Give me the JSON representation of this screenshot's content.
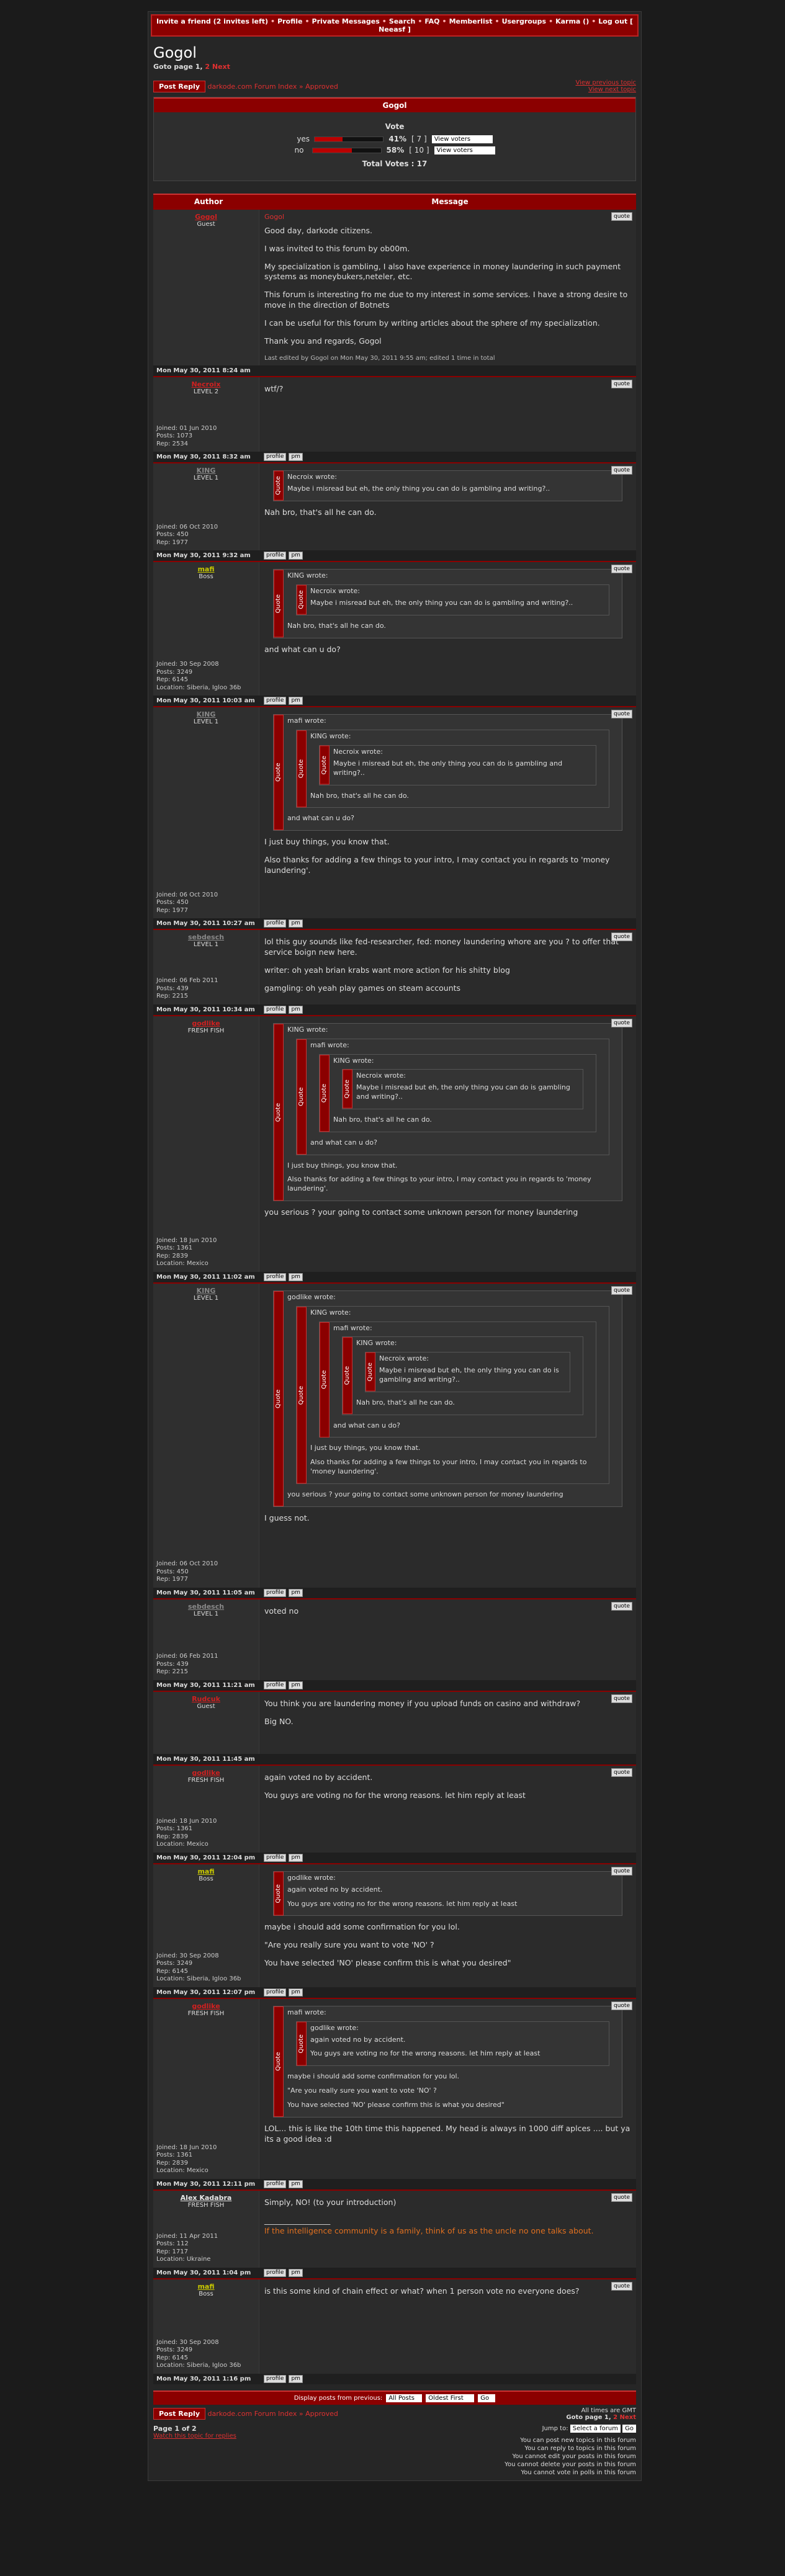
{
  "nav": {
    "separator": "•",
    "items": [
      "Invite a friend (2 invites left)",
      "Profile",
      "Private Messages",
      "Search",
      "FAQ",
      "Memberlist",
      "Usergroups",
      "Karma ()",
      "Log out [ Neeasf ]"
    ]
  },
  "header": {
    "title": "Gogol",
    "goto": "Goto page 1,",
    "goto_page": "2",
    "goto_next": "Next"
  },
  "breadcrumb": {
    "button": "Post Reply",
    "index": "darkode.com Forum Index",
    "sep": "»",
    "forum": "Approved",
    "prev": "View previous topic",
    "next": "View next topic"
  },
  "poll": {
    "topic": "Gogol",
    "question": "Vote",
    "view": "View voters",
    "total": "Total Votes : 17",
    "options": [
      {
        "label": "yes",
        "percent": 41,
        "percent_label": "41%",
        "votes": 7,
        "votes_label": "[ 7 ]"
      },
      {
        "label": "no",
        "percent": 58,
        "percent_label": "58%",
        "votes": 10,
        "votes_label": "[ 10 ]"
      }
    ]
  },
  "labels": {
    "author": "Author",
    "message": "Message",
    "quote_button": "quote",
    "quote_bar": "Quote",
    "profile": "profile",
    "pm": "pm"
  },
  "posts": [
    {
      "author": "Gogol",
      "color": "#d02020",
      "rank": "Guest",
      "details": [],
      "date": "Mon May 30, 2011 8:24 am",
      "subject": "Gogol",
      "body": [
        "Good day, darkode citizens.",
        "I was invited to this forum by ob00m.",
        "My specialization is gambling, I also have experience in money laundering in such payment systems as moneybukers,neteler, etc.",
        "This forum is interesting fro me due to my interest in some services. I have a strong desire to move in the direction of Botnets",
        "I can be useful for this forum by writing articles about the sphere of my specialization.",
        "Thank you and regards, Gogol"
      ],
      "edit": "Last edited by Gogol on Mon May 30, 2011 9:55 am; edited 1 time in total"
    },
    {
      "author": "Necroix",
      "color": "#d02020",
      "rank": "LEVEL 2",
      "details": [
        "Joined: 01 Jun 2010",
        "Posts: 1073",
        "Rep: 2534"
      ],
      "date": "Mon May 30, 2011 8:32 am",
      "body": [
        "wtf/?"
      ]
    },
    {
      "author": "KING",
      "color": "#888888",
      "rank": "LEVEL 1",
      "details": [
        "Joined: 06 Oct 2010",
        "Posts: 450",
        "Rep: 1977"
      ],
      "date": "Mon May 30, 2011 9:32 am",
      "body": [
        {
          "author": "Necroix wrote:",
          "body": [
            "Maybe i misread but eh, the only thing you can do is gambling and writing?.."
          ]
        },
        "Nah bro, that's all he can do."
      ]
    },
    {
      "author": "mafi",
      "color": "#c8c800",
      "rank": "Boss",
      "details": [
        "Joined: 30 Sep 2008",
        "Posts: 3249",
        "Rep: 6145",
        "Location: Siberia, Igloo 36b"
      ],
      "date": "Mon May 30, 2011 10:03 am",
      "body": [
        {
          "author": "KING wrote:",
          "body": [
            {
              "author": "Necroix wrote:",
              "body": [
                "Maybe i misread but eh, the only thing you can do is gambling and writing?.."
              ]
            },
            "Nah bro, that's all he can do."
          ]
        },
        "and what can u do?"
      ]
    },
    {
      "author": "KING",
      "color": "#888888",
      "rank": "LEVEL 1",
      "details": [
        "Joined: 06 Oct 2010",
        "Posts: 450",
        "Rep: 1977"
      ],
      "date": "Mon May 30, 2011 10:27 am",
      "body": [
        {
          "author": "mafi wrote:",
          "body": [
            {
              "author": "KING wrote:",
              "body": [
                {
                  "author": "Necroix wrote:",
                  "body": [
                    "Maybe i misread but eh, the only thing you can do is gambling and writing?.."
                  ]
                },
                "Nah bro, that's all he can do."
              ]
            },
            "and what can u do?"
          ]
        },
        "I just buy things, you know that.",
        "Also thanks for adding a few things to your intro, I may contact you in regards to 'money laundering'."
      ]
    },
    {
      "author": "sebdesch",
      "color": "#888888",
      "rank": "LEVEL 1",
      "details": [
        "Joined: 06 Feb 2011",
        "Posts: 439",
        "Rep: 2215"
      ],
      "date": "Mon May 30, 2011 10:34 am",
      "body": [
        "lol this guy sounds like fed-researcher, fed: money laundering whore are you ? to offer that service boign new here.",
        "writer: oh yeah brian krabs want more action for his shitty blog",
        "gamgling: oh yeah play games on steam accounts"
      ]
    },
    {
      "author": "godlike",
      "color": "#d02020",
      "rank": "FRESH FISH",
      "details": [
        "Joined: 18 Jun 2010",
        "Posts: 1361",
        "Rep: 2839",
        "Location: Mexico"
      ],
      "date": "Mon May 30, 2011 11:02 am",
      "body": [
        {
          "author": "KING wrote:",
          "body": [
            {
              "author": "mafi wrote:",
              "body": [
                {
                  "author": "KING wrote:",
                  "body": [
                    {
                      "author": "Necroix wrote:",
                      "body": [
                        "Maybe i misread but eh, the only thing you can do is gambling and writing?.."
                      ]
                    },
                    "Nah bro, that's all he can do."
                  ]
                },
                "and what can u do?"
              ]
            },
            "I just buy things, you know that.",
            "Also thanks for adding a few things to your intro, I may contact you in regards to 'money laundering'."
          ]
        },
        "you serious ? your going to contact some unknown person for money laundering"
      ]
    },
    {
      "author": "KING",
      "color": "#888888",
      "rank": "LEVEL 1",
      "details": [
        "Joined: 06 Oct 2010",
        "Posts: 450",
        "Rep: 1977"
      ],
      "date": "Mon May 30, 2011 11:05 am",
      "body": [
        {
          "author": "godlike wrote:",
          "body": [
            {
              "author": "KING wrote:",
              "body": [
                {
                  "author": "mafi wrote:",
                  "body": [
                    {
                      "author": "KING wrote:",
                      "body": [
                        {
                          "author": "Necroix wrote:",
                          "body": [
                            "Maybe i misread but eh, the only thing you can do is gambling and writing?.."
                          ]
                        },
                        "Nah bro, that's all he can do."
                      ]
                    },
                    "and what can u do?"
                  ]
                },
                "I just buy things, you know that.",
                "Also thanks for adding a few things to your intro, I may contact you in regards to 'money laundering'."
              ]
            },
            "you serious ? your going to contact some unknown person for money laundering"
          ]
        },
        "I guess not."
      ]
    },
    {
      "author": "sebdesch",
      "color": "#888888",
      "rank": "LEVEL 1",
      "details": [
        "Joined: 06 Feb 2011",
        "Posts: 439",
        "Rep: 2215"
      ],
      "date": "Mon May 30, 2011 11:21 am",
      "body": [
        "voted no"
      ]
    },
    {
      "author": "Rudcuk",
      "color": "#d02020",
      "rank": "Guest",
      "details": [],
      "date": "Mon May 30, 2011 11:45 am",
      "body": [
        "You think you are laundering money if you upload funds on casino and withdraw?",
        "Big NO."
      ]
    },
    {
      "author": "godlike",
      "color": "#d02020",
      "rank": "FRESH FISH",
      "details": [
        "Joined: 18 Jun 2010",
        "Posts: 1361",
        "Rep: 2839",
        "Location: Mexico"
      ],
      "date": "Mon May 30, 2011 12:04 pm",
      "body": [
        "again voted no by accident.",
        "You guys are voting no for the wrong reasons. let him reply at least"
      ]
    },
    {
      "author": "mafi",
      "color": "#c8c800",
      "rank": "Boss",
      "details": [
        "Joined: 30 Sep 2008",
        "Posts: 3249",
        "Rep: 6145",
        "Location: Siberia, Igloo 36b"
      ],
      "date": "Mon May 30, 2011 12:07 pm",
      "body": [
        {
          "author": "godlike wrote:",
          "body": [
            "again voted no by accident.",
            "You guys are voting no for the wrong reasons. let him reply at least"
          ]
        },
        "maybe i should add some confirmation for you lol.",
        "\"Are you really sure you want to vote 'NO' ?",
        "You have selected 'NO' please confirm this is what you desired\""
      ]
    },
    {
      "author": "godlike",
      "color": "#d02020",
      "rank": "FRESH FISH",
      "details": [
        "Joined: 18 Jun 2010",
        "Posts: 1361",
        "Rep: 2839",
        "Location: Mexico"
      ],
      "date": "Mon May 30, 2011 12:11 pm",
      "body": [
        {
          "author": "mafi wrote:",
          "body": [
            {
              "author": "godlike wrote:",
              "body": [
                "again voted no by accident.",
                "You guys are voting no for the wrong reasons. let him reply at least"
              ]
            },
            "maybe i should add some confirmation for you lol.",
            "\"Are you really sure you want to vote 'NO' ?",
            "You have selected 'NO' please confirm this is what you desired\""
          ]
        },
        "LOL... this is like the 10th time this happened. My head is always in 1000 diff aplces .... but ya its a good idea :d"
      ]
    },
    {
      "author": "Alex Kadabra",
      "color": "#e8e8e8",
      "rank": "FRESH FISH",
      "details": [
        "Joined: 11 Apr 2011",
        "Posts: 112",
        "Rep: 1717",
        "Location: Ukraine"
      ],
      "date": "Mon May 30, 2011 1:04 pm",
      "body": [
        "Simply, NO! (to your introduction)"
      ],
      "signature": [
        "_________________",
        "If the intelligence community is a family, think of us as the uncle no one talks about."
      ]
    },
    {
      "author": "mafi",
      "color": "#c8c800",
      "rank": "Boss",
      "details": [
        "Joined: 30 Sep 2008",
        "Posts: 3249",
        "Rep: 6145",
        "Location: Siberia, Igloo 36b"
      ],
      "date": "Mon May 30, 2011 1:16 pm",
      "body": [
        "is this some kind of chain effect or what? when 1 person vote no everyone does?"
      ]
    }
  ],
  "footer": {
    "display": "Display posts from previous:",
    "all": "All Posts",
    "order": "Oldest First",
    "go": "Go",
    "times": "All times are GMT",
    "page": "Page 1 of 2",
    "watch": "Watch this topic for replies",
    "jump": "Jump to:",
    "select": "Select a forum",
    "permissions": [
      "You can post new topics in this forum",
      "You can reply to topics in this forum",
      "You cannot edit your posts in this forum",
      "You cannot delete your posts in this forum",
      "You cannot vote in polls in this forum"
    ]
  }
}
